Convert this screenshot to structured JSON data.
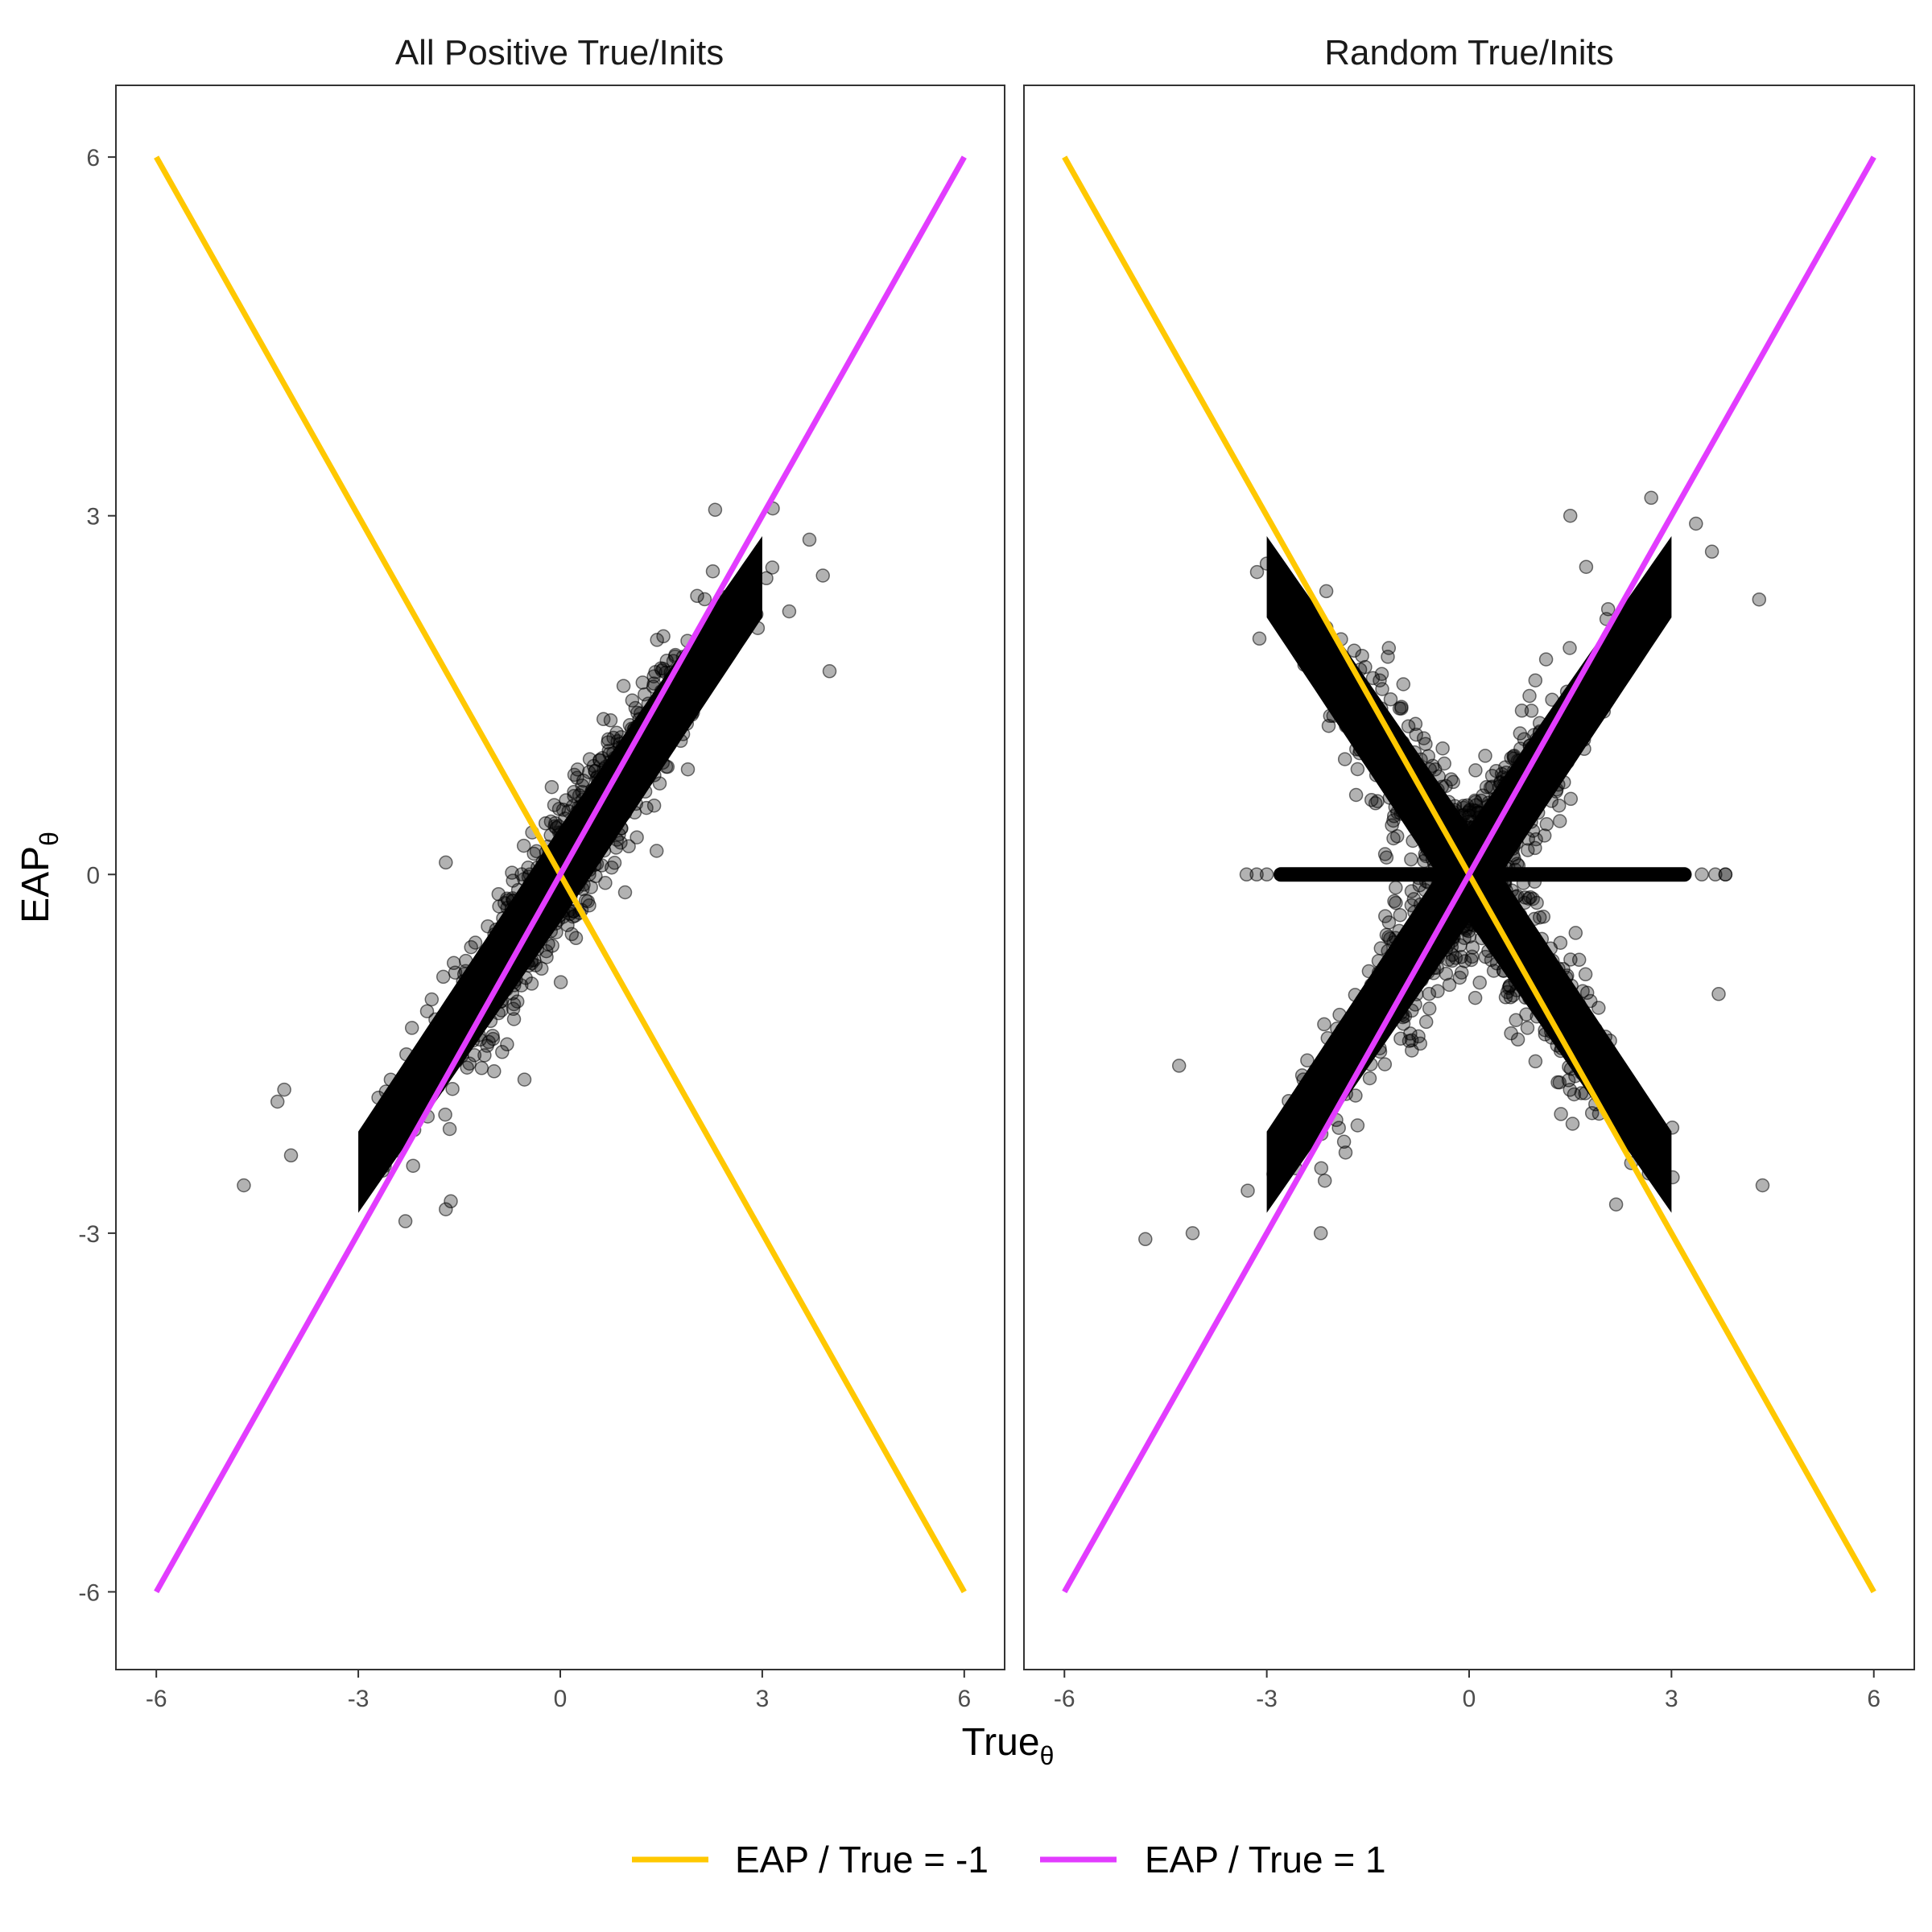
{
  "chart_data": {
    "type": "scatter",
    "xlabel": "True",
    "xlabel_subscript": "θ",
    "ylabel": "EAP",
    "ylabel_subscript": "θ",
    "xlim": [
      -6.6,
      6.6
    ],
    "ylim": [
      -6.65,
      6.6
    ],
    "x_ticks": [
      "-6",
      "-3",
      "0",
      "3",
      "6"
    ],
    "y_ticks": [
      "-6",
      "-3",
      "0",
      "3",
      "6"
    ],
    "grid": false,
    "legend_position": "bottom",
    "point_color": "#000000",
    "point_alpha": 0.3,
    "reference_lines": [
      {
        "name": "EAP / True = -1",
        "slope": -1,
        "color": "#FFC800",
        "x": [
          -6,
          6
        ],
        "y": [
          6,
          -6
        ]
      },
      {
        "name": "EAP / True = 1",
        "slope": 1,
        "color": "#E23CFF",
        "x": [
          -6,
          6
        ],
        "y": [
          -6,
          6
        ]
      }
    ],
    "panels": [
      {
        "title": "All Positive True/Inits",
        "cloud": {
          "relation": "EAP ≈ 0.85·True",
          "x_range": [
            -4.7,
            4.1
          ],
          "y_range": [
            -2.9,
            3.1
          ]
        },
        "outliers": [
          {
            "x": -4.7,
            "y": -2.6
          },
          {
            "x": -4.1,
            "y": -1.8
          },
          {
            "x": -1.7,
            "y": -2.8
          },
          {
            "x": 3.7,
            "y": 2.8
          },
          {
            "x": 4.0,
            "y": 1.7
          },
          {
            "x": 2.3,
            "y": 3.05
          },
          {
            "x": -1.7,
            "y": 0.1
          },
          {
            "x": -4.2,
            "y": -1.9
          },
          {
            "x": -4.0,
            "y": -2.35
          },
          {
            "x": 3.4,
            "y": 2.2
          },
          {
            "x": 3.9,
            "y": 2.5
          },
          {
            "x": -2.3,
            "y": -2.9
          }
        ]
      },
      {
        "title": "Random True/Inits",
        "clouds": [
          {
            "relation": "EAP ≈ 0.85·True",
            "x_range": [
              -4.3,
              4.3
            ],
            "y_range": [
              -3.0,
              3.1
            ]
          },
          {
            "relation": "EAP ≈ -0.85·True",
            "x_range": [
              -4.3,
              4.3
            ],
            "y_range": [
              -2.9,
              2.9
            ]
          },
          {
            "relation": "EAP = 0",
            "x_range": [
              -3.3,
              3.8
            ]
          }
        ],
        "outliers": [
          {
            "x": -4.8,
            "y": -3.05
          },
          {
            "x": -4.1,
            "y": -3.0
          },
          {
            "x": 4.3,
            "y": 2.3
          },
          {
            "x": 4.35,
            "y": -2.6
          },
          {
            "x": -3.0,
            "y": 2.6
          },
          {
            "x": 1.5,
            "y": 3.0
          },
          {
            "x": -2.2,
            "y": -3.0
          },
          {
            "x": 3.7,
            "y": -1.0
          },
          {
            "x": 3.8,
            "y": 0.0
          },
          {
            "x": -4.3,
            "y": -1.6
          },
          {
            "x": 2.7,
            "y": 3.15
          },
          {
            "x": 3.6,
            "y": 2.7
          }
        ]
      }
    ]
  }
}
